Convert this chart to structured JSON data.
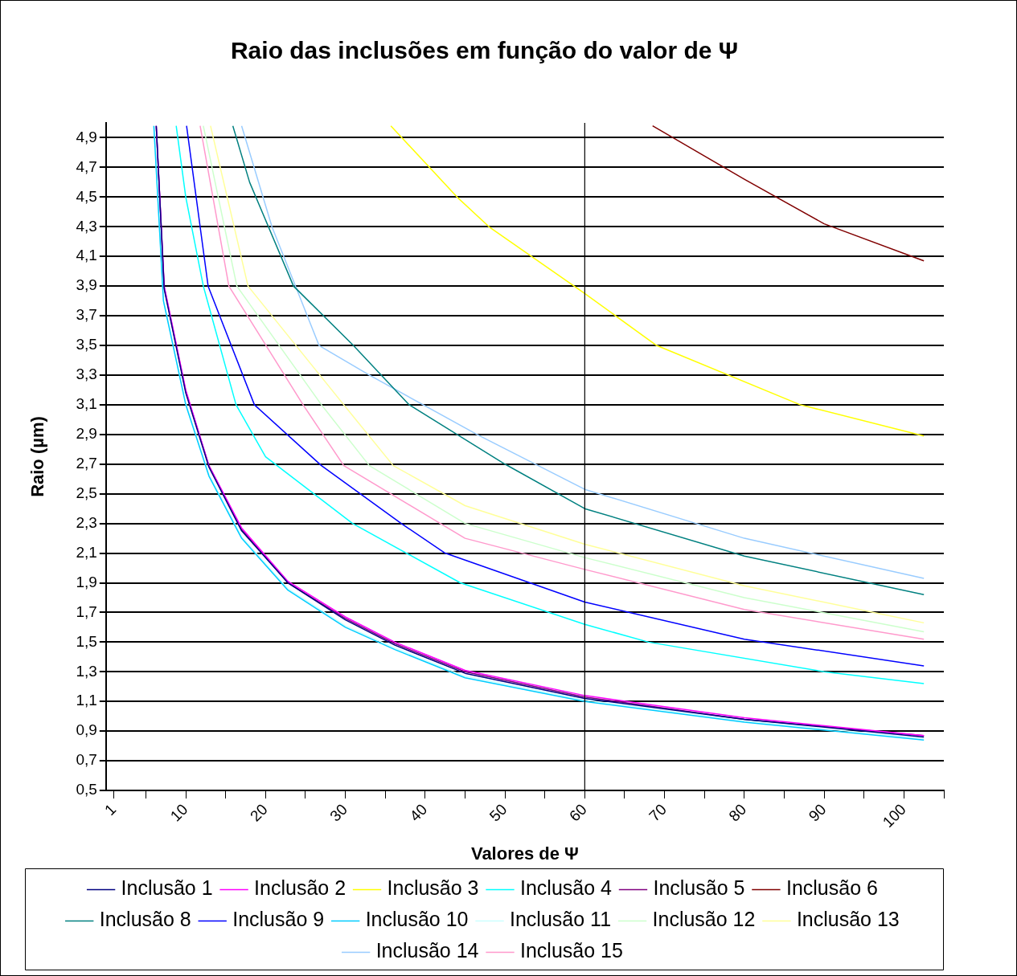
{
  "chart_data": {
    "type": "line",
    "title": "Raio das inclusões em função do valor de Ψ",
    "xlabel": "Valores de Ψ",
    "ylabel": "Raio (µm)",
    "xlim": [
      0,
      105
    ],
    "xticks": [
      1,
      {
        "value": 5,
        "label": null
      },
      10,
      {
        "value": 15,
        "label": null
      },
      20,
      {
        "value": 25,
        "label": null
      },
      30,
      {
        "value": 35,
        "label": null
      },
      40,
      {
        "value": 45,
        "label": null
      },
      50,
      {
        "value": 55,
        "label": null
      },
      60,
      {
        "value": 65,
        "label": null
      },
      70,
      {
        "value": 75,
        "label": null
      },
      80,
      {
        "value": 85,
        "label": null
      },
      90,
      {
        "value": 95,
        "label": null
      },
      100,
      {
        "value": 105,
        "label": null
      }
    ],
    "ylim": [
      0.5,
      5.0
    ],
    "yticks": [
      {
        "value": 0.5,
        "label": "0,5"
      },
      {
        "value": 0.7,
        "label": "0,7"
      },
      {
        "value": 0.9,
        "label": "0,9"
      },
      {
        "value": 1.1,
        "label": "1,1"
      },
      {
        "value": 1.3,
        "label": "1,3"
      },
      {
        "value": 1.5,
        "label": "1,5"
      },
      {
        "value": 1.7,
        "label": "1,7"
      },
      {
        "value": 1.9,
        "label": "1,9"
      },
      {
        "value": 2.1,
        "label": "2,1"
      },
      {
        "value": 2.3,
        "label": "2,3"
      },
      {
        "value": 2.5,
        "label": "2,5"
      },
      {
        "value": 2.7,
        "label": "2,7"
      },
      {
        "value": 2.9,
        "label": "2,9"
      },
      {
        "value": 3.1,
        "label": "3,1"
      },
      {
        "value": 3.3,
        "label": "3,3"
      },
      {
        "value": 3.5,
        "label": "3,5"
      },
      {
        "value": 3.7,
        "label": "3,7"
      },
      {
        "value": 3.9,
        "label": "3,9"
      },
      {
        "value": 4.1,
        "label": "4,1"
      },
      {
        "value": 4.3,
        "label": "4,3"
      },
      {
        "value": 4.5,
        "label": "4,5"
      },
      {
        "value": 4.7,
        "label": "4,7"
      },
      {
        "value": 4.9,
        "label": "4,9"
      }
    ],
    "grid": "y",
    "legend": "bottom",
    "marker": "none",
    "line_style": "solid",
    "ref_lines": [
      {
        "axis": "x",
        "value": 60,
        "color": "#000000"
      }
    ],
    "series": [
      {
        "name": "Inclusão 1",
        "color": "#000080",
        "x": [
          6.3,
          7.3,
          10,
          12.9,
          17,
          22.8,
          30,
          36.2,
          45,
          60,
          80,
          102.5
        ],
        "values": [
          4.98,
          3.88,
          3.18,
          2.68,
          2.25,
          1.9,
          1.65,
          1.48,
          1.29,
          1.12,
          0.98,
          0.86
        ]
      },
      {
        "name": "Inclusão 2",
        "color": "#ff00ff",
        "x": [
          6.3,
          7.3,
          10,
          12.9,
          17,
          22.8,
          30,
          36.2,
          45,
          60,
          80,
          102.5
        ],
        "values": [
          4.98,
          3.9,
          3.2,
          2.69,
          2.27,
          1.91,
          1.67,
          1.5,
          1.31,
          1.14,
          0.99,
          0.87
        ]
      },
      {
        "name": "Inclusão 3",
        "color": "#ffff00",
        "x": [
          35.7,
          44,
          48,
          60,
          69,
          87,
          102.5
        ],
        "values": [
          4.98,
          4.5,
          4.3,
          3.85,
          3.5,
          3.1,
          2.89
        ]
      },
      {
        "name": "Inclusão 4",
        "color": "#00ffff",
        "x": [
          8.8,
          10,
          12.2,
          16.3,
          20,
          30.9,
          44.4,
          60,
          68,
          90,
          102.5
        ],
        "values": [
          4.98,
          4.5,
          3.9,
          3.1,
          2.75,
          2.3,
          1.9,
          1.62,
          1.5,
          1.3,
          1.22
        ]
      },
      {
        "name": "Inclusão 5",
        "color": "#800080",
        "x": [
          6.3,
          7.3,
          10,
          12.9,
          17,
          22.8,
          30,
          36.2,
          45,
          60,
          80,
          102.5
        ],
        "values": [
          4.98,
          3.89,
          3.19,
          2.69,
          2.26,
          1.9,
          1.66,
          1.49,
          1.3,
          1.13,
          0.98,
          0.87
        ]
      },
      {
        "name": "Inclusão 6",
        "color": "#800000",
        "x": [
          68.5,
          80,
          90,
          102.5
        ],
        "values": [
          4.98,
          4.62,
          4.32,
          4.07
        ]
      },
      {
        "name": "Inclusão 8",
        "color": "#008080",
        "x": [
          15.9,
          18,
          23.5,
          31,
          38,
          50,
          60,
          80,
          102.5
        ],
        "values": [
          4.98,
          4.6,
          3.9,
          3.5,
          3.1,
          2.7,
          2.4,
          2.08,
          1.82
        ]
      },
      {
        "name": "Inclusão 9",
        "color": "#0000ff",
        "x": [
          10.1,
          12.8,
          18.6,
          27,
          37,
          42.5,
          60,
          80,
          102.5
        ],
        "values": [
          4.98,
          3.9,
          3.1,
          2.69,
          2.3,
          2.1,
          1.77,
          1.52,
          1.34
        ]
      },
      {
        "name": "Inclusão 10",
        "color": "#00ccff",
        "x": [
          6,
          7.2,
          10,
          12.9,
          17,
          22.8,
          30,
          36.2,
          45,
          60,
          80,
          102.5
        ],
        "values": [
          4.98,
          3.8,
          3.1,
          2.62,
          2.2,
          1.85,
          1.6,
          1.45,
          1.26,
          1.1,
          0.96,
          0.84
        ]
      },
      {
        "name": "Inclusão 11",
        "color": "#ccffff",
        "x": [
          6,
          7.2,
          10,
          12.9,
          17,
          22.8,
          30,
          36.2,
          45,
          60,
          80,
          102.5
        ],
        "values": [
          4.98,
          3.81,
          3.11,
          2.63,
          2.21,
          1.86,
          1.61,
          1.46,
          1.27,
          1.11,
          0.97,
          0.85
        ]
      },
      {
        "name": "Inclusão 12",
        "color": "#ccffcc",
        "x": [
          12.2,
          16.4,
          27,
          33,
          45,
          60,
          80,
          102.5
        ],
        "values": [
          4.98,
          3.9,
          3.1,
          2.69,
          2.3,
          2.07,
          1.8,
          1.57
        ]
      },
      {
        "name": "Inclusão 13",
        "color": "#ffff99",
        "x": [
          13.1,
          17.8,
          29.8,
          36,
          45,
          60,
          80,
          102.5
        ],
        "values": [
          4.98,
          3.9,
          3.1,
          2.69,
          2.42,
          2.16,
          1.88,
          1.63
        ]
      },
      {
        "name": "Inclusão 14",
        "color": "#99ccff",
        "x": [
          17,
          20.8,
          26.7,
          33,
          46.5,
          60,
          80,
          102.5
        ],
        "values": [
          4.98,
          4.3,
          3.5,
          3.3,
          2.9,
          2.53,
          2.2,
          1.93
        ]
      },
      {
        "name": "Inclusão 15",
        "color": "#ff99cc",
        "x": [
          11.8,
          15.4,
          24.7,
          29.8,
          45,
          60,
          80,
          102.5
        ],
        "values": [
          4.98,
          3.9,
          3.1,
          2.69,
          2.2,
          1.99,
          1.72,
          1.52
        ]
      }
    ]
  }
}
